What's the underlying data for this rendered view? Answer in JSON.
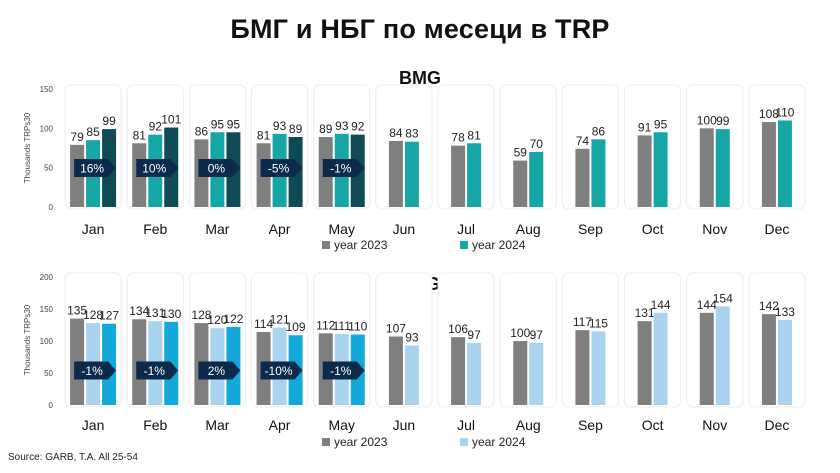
{
  "title": "БМГ и НБГ по месеци в TRP",
  "source": "Source: GARB, T.A. All 25-54",
  "colors": {
    "y2023": "#7f7f7f",
    "bmg_2024": "#17a6a6",
    "bmg_2024_alt": "#0e4b55",
    "nbg_2024": "#a9d3ee",
    "nbg_2024_alt": "#12a8da",
    "badge": "#0c2a4b"
  },
  "chart_data": [
    {
      "type": "bar",
      "title": "BMG",
      "ylabel": "Thousands TRPs30",
      "ylim": [
        0,
        150
      ],
      "yticks": [
        "0",
        "50",
        "100",
        "150"
      ],
      "categories": [
        "Jan",
        "Feb",
        "Mar",
        "Apr",
        "May",
        "Jun",
        "Jul",
        "Aug",
        "Sep",
        "Oct",
        "Nov",
        "Dec"
      ],
      "series": [
        {
          "name": "year 2023",
          "values": [
            79,
            81,
            86,
            81,
            89,
            84,
            78,
            59,
            74,
            91,
            100,
            108
          ]
        },
        {
          "name": "year 2024",
          "values": [
            85,
            92,
            95,
            93,
            93,
            83,
            81,
            70,
            86,
            95,
            99,
            110
          ]
        },
        {
          "name": "",
          "values": [
            99,
            101,
            95,
            89,
            92,
            null,
            null,
            null,
            null,
            null,
            null,
            null
          ]
        }
      ],
      "badges": [
        "16%",
        "10%",
        "0%",
        "-5%",
        "-1%"
      ],
      "legend": [
        "year 2023",
        "year 2024"
      ]
    },
    {
      "type": "bar",
      "title": "NBG",
      "ylabel": "Thousands TRPs30",
      "ylim": [
        0,
        200
      ],
      "yticks": [
        "0",
        "50",
        "100",
        "150",
        "200"
      ],
      "categories": [
        "Jan",
        "Feb",
        "Mar",
        "Apr",
        "May",
        "Jun",
        "Jul",
        "Aug",
        "Sep",
        "Oct",
        "Nov",
        "Dec"
      ],
      "series": [
        {
          "name": "year 2023",
          "values": [
            135,
            134,
            128,
            114,
            112,
            107,
            106,
            100,
            117,
            131,
            144,
            142
          ]
        },
        {
          "name": "year 2024",
          "values": [
            128,
            131,
            120,
            121,
            111,
            93,
            97,
            97,
            115,
            144,
            154,
            133
          ]
        },
        {
          "name": "",
          "values": [
            127,
            130,
            122,
            109,
            110,
            null,
            null,
            null,
            null,
            null,
            null,
            null
          ]
        }
      ],
      "badges": [
        "-1%",
        "-1%",
        "2%",
        "-10%",
        "-1%"
      ],
      "legend": [
        "year 2023",
        "year 2024"
      ]
    }
  ]
}
